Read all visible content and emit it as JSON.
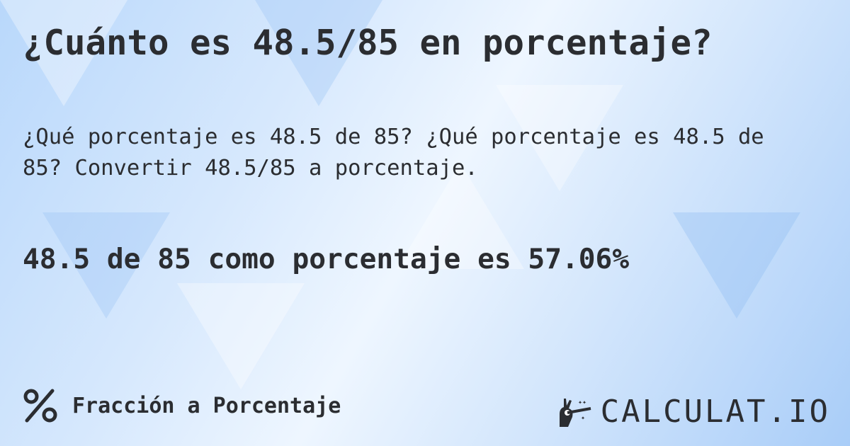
{
  "title": "¿Cuánto es 48.5/85 en porcentaje?",
  "description": "¿Qué porcentaje es 48.5 de 85? ¿Qué porcentaje es 48.5 de 85? Convertir 48.5/85 a porcentaje.",
  "result": "48.5 de 85 como porcentaje es 57.06%",
  "footer": {
    "category_icon": "percent-icon",
    "category_label": "Fracción a Porcentaje"
  },
  "logo": {
    "icon": "magic-hand-icon",
    "text": "CALCULAT.IO"
  },
  "colors": {
    "text": "#2b2d31",
    "background_light": "#eef6ff",
    "background_blue": "#a9cdf8"
  }
}
